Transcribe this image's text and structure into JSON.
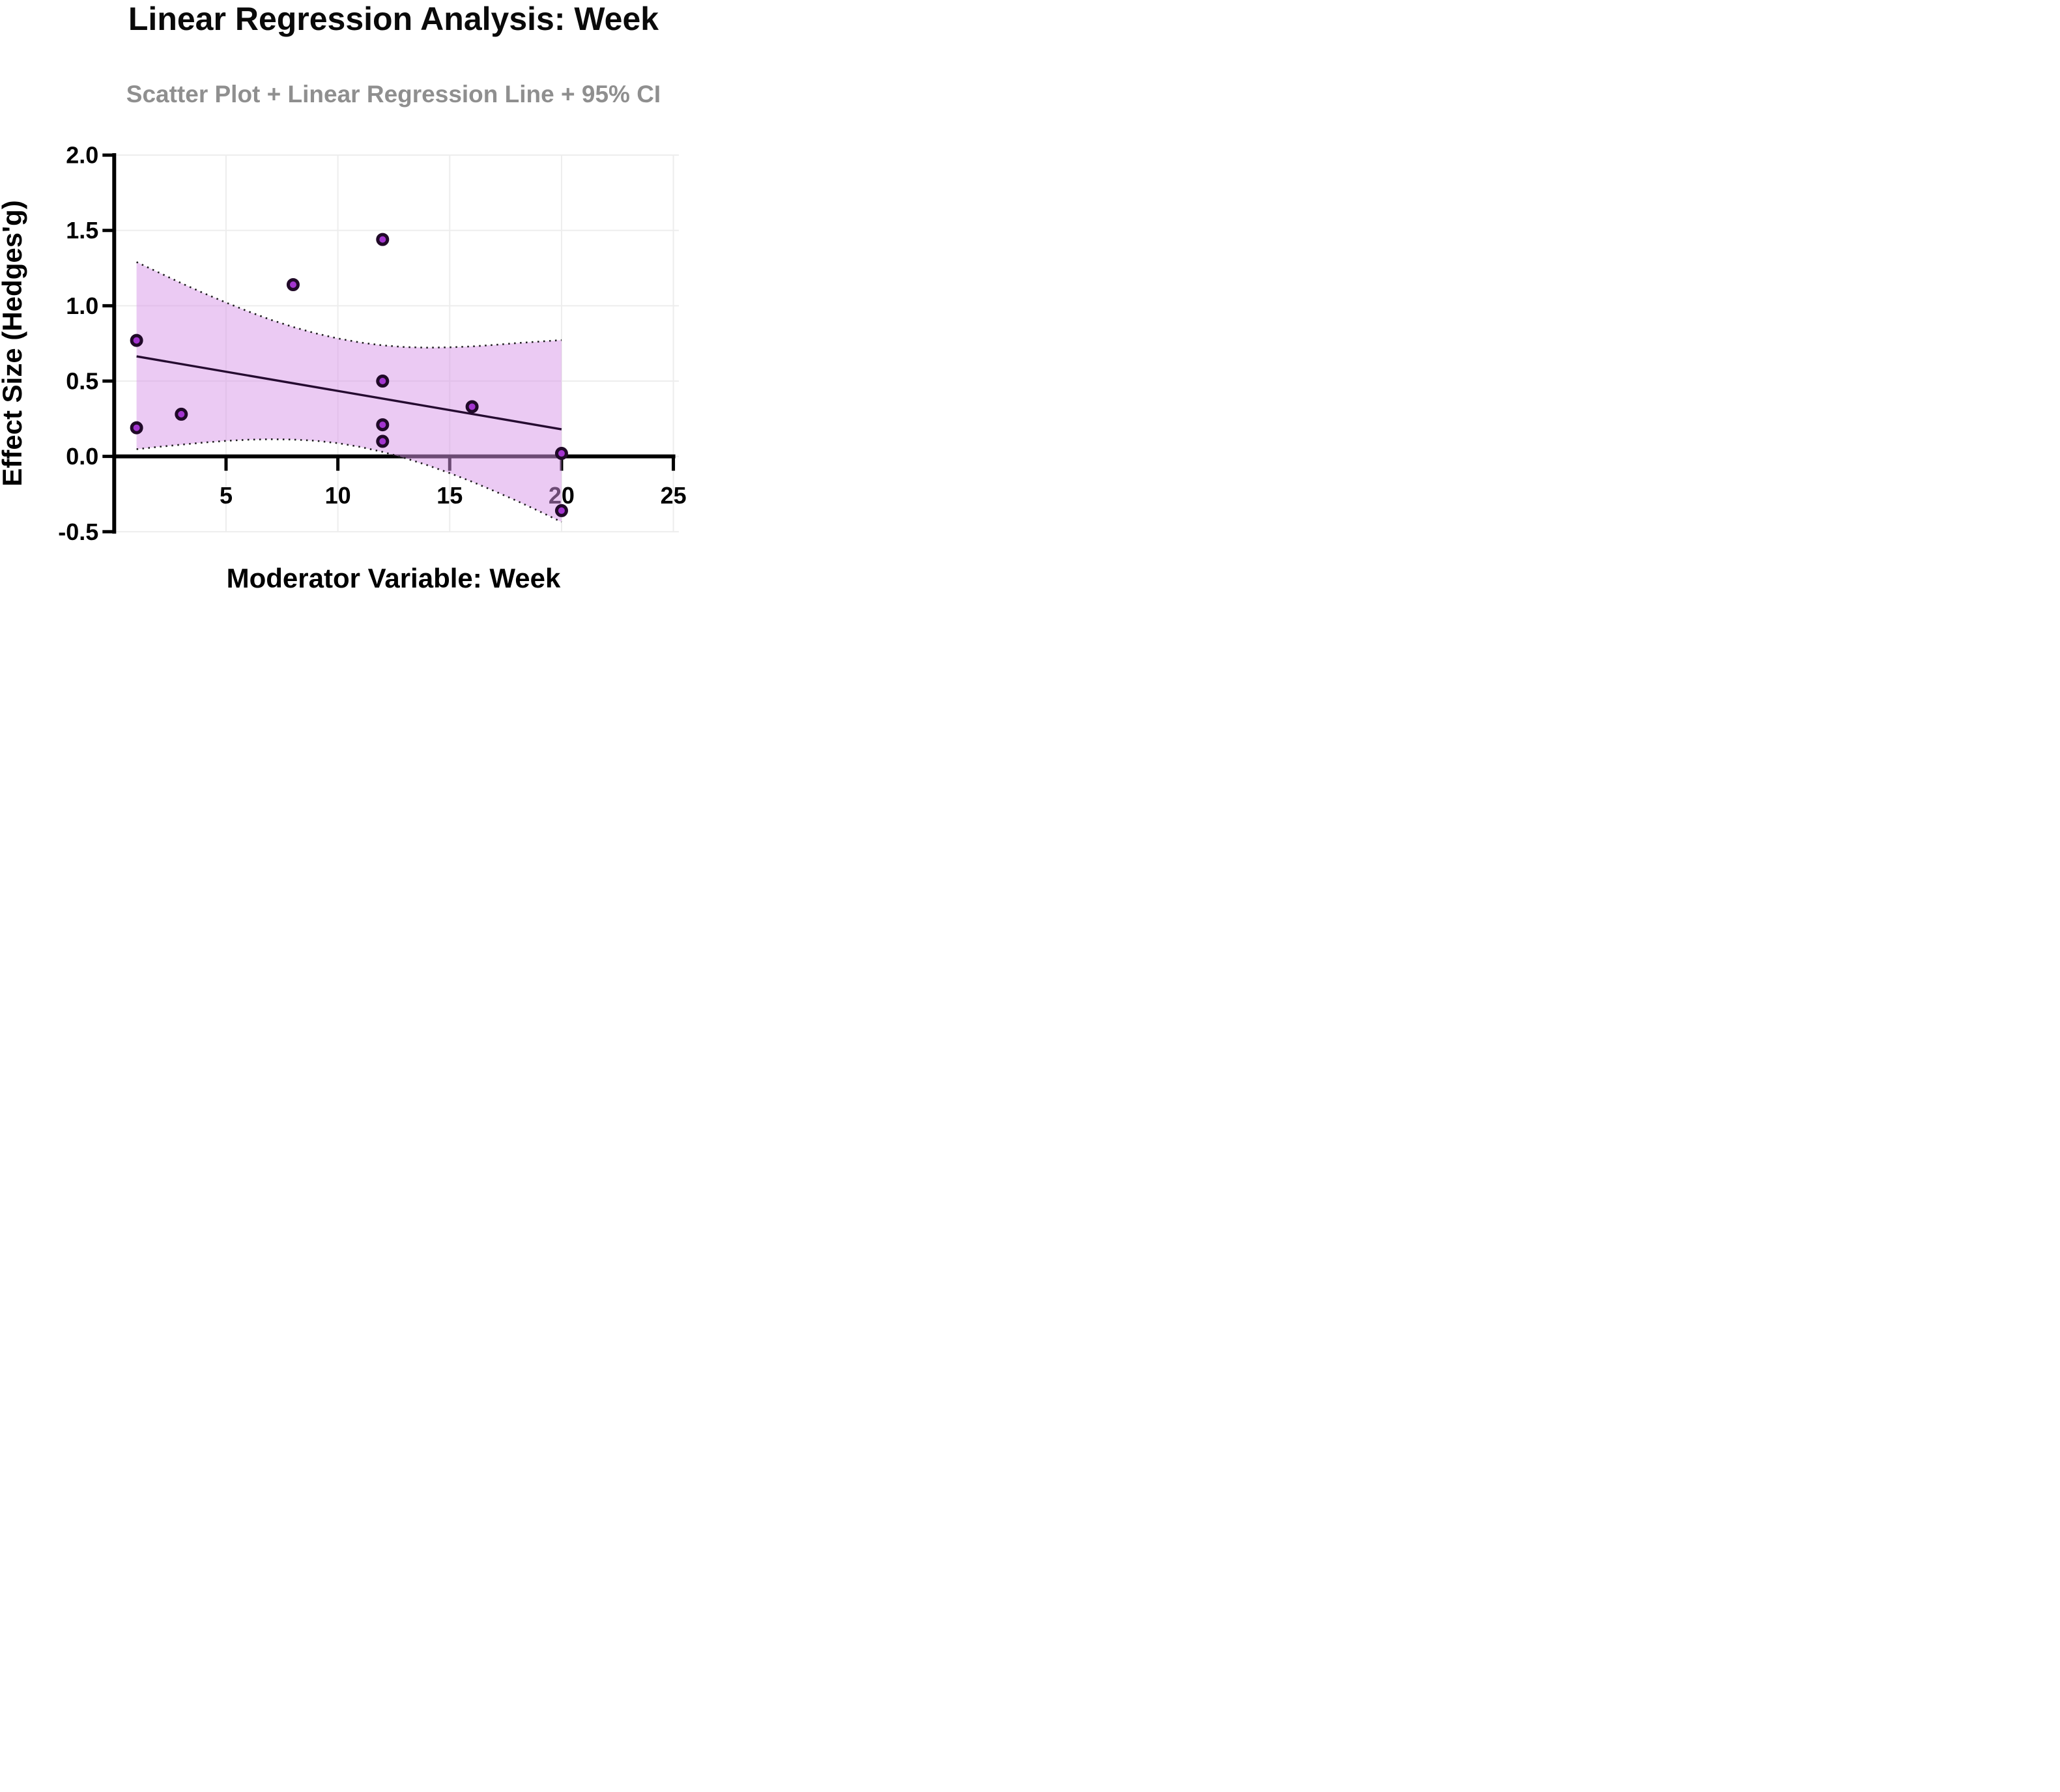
{
  "chart_data": {
    "type": "scatter",
    "title": "Linear Regression Analysis: Week",
    "subtitle": "Scatter Plot + Linear Regression Line + 95% CI",
    "xlabel": "Moderator Variable: Week",
    "ylabel": "Effect Size (Hedges'g)",
    "xlim": [
      0,
      25
    ],
    "ylim": [
      -0.5,
      2.0
    ],
    "xticks": [
      5,
      10,
      15,
      20,
      25
    ],
    "xtick_labels": [
      "5",
      "10",
      "15",
      "20",
      "25"
    ],
    "yticks": [
      -0.5,
      0.0,
      0.5,
      1.0,
      1.5,
      2.0
    ],
    "ytick_labels": [
      "-0.5",
      "0.0",
      "0.5",
      "1.0",
      "1.5",
      "2.0"
    ],
    "grid": true,
    "legend": "none",
    "points": [
      [
        1,
        0.77
      ],
      [
        1,
        0.19
      ],
      [
        3,
        0.28
      ],
      [
        8,
        1.14
      ],
      [
        12,
        1.44
      ],
      [
        12,
        0.5
      ],
      [
        12,
        0.21
      ],
      [
        12,
        0.1
      ],
      [
        16,
        0.33
      ],
      [
        20,
        0.02
      ],
      [
        20,
        -0.36
      ]
    ],
    "regression_line": {
      "x1": 1,
      "y1": 0.664,
      "x2": 20,
      "y2": 0.18
    },
    "ci_band": {
      "x": [
        1,
        2,
        3,
        4,
        5,
        6,
        7,
        8,
        9,
        10,
        11,
        12,
        13,
        14,
        15,
        16,
        17,
        18,
        19,
        20
      ],
      "upper": [
        1.29,
        1.22,
        1.15,
        1.084,
        1.021,
        0.962,
        0.907,
        0.859,
        0.817,
        0.783,
        0.756,
        0.737,
        0.726,
        0.722,
        0.724,
        0.73,
        0.74,
        0.752,
        0.762,
        0.772
      ],
      "lower": [
        0.048,
        0.064,
        0.078,
        0.092,
        0.103,
        0.111,
        0.114,
        0.112,
        0.104,
        0.088,
        0.063,
        0.03,
        -0.011,
        -0.058,
        -0.111,
        -0.168,
        -0.23,
        -0.295,
        -0.364,
        -0.435
      ]
    },
    "colors": {
      "point_fill": "#a335cf",
      "point_stroke": "#200a28",
      "band_fill": "#d795e8",
      "band_opacity": 0.5,
      "band_border": "#1c1c1c",
      "regression_line": "#250b30",
      "axis": "#000000",
      "grid": "#ededed",
      "subtitle": "#8f8f8f",
      "title": "#0a0a0a"
    }
  }
}
